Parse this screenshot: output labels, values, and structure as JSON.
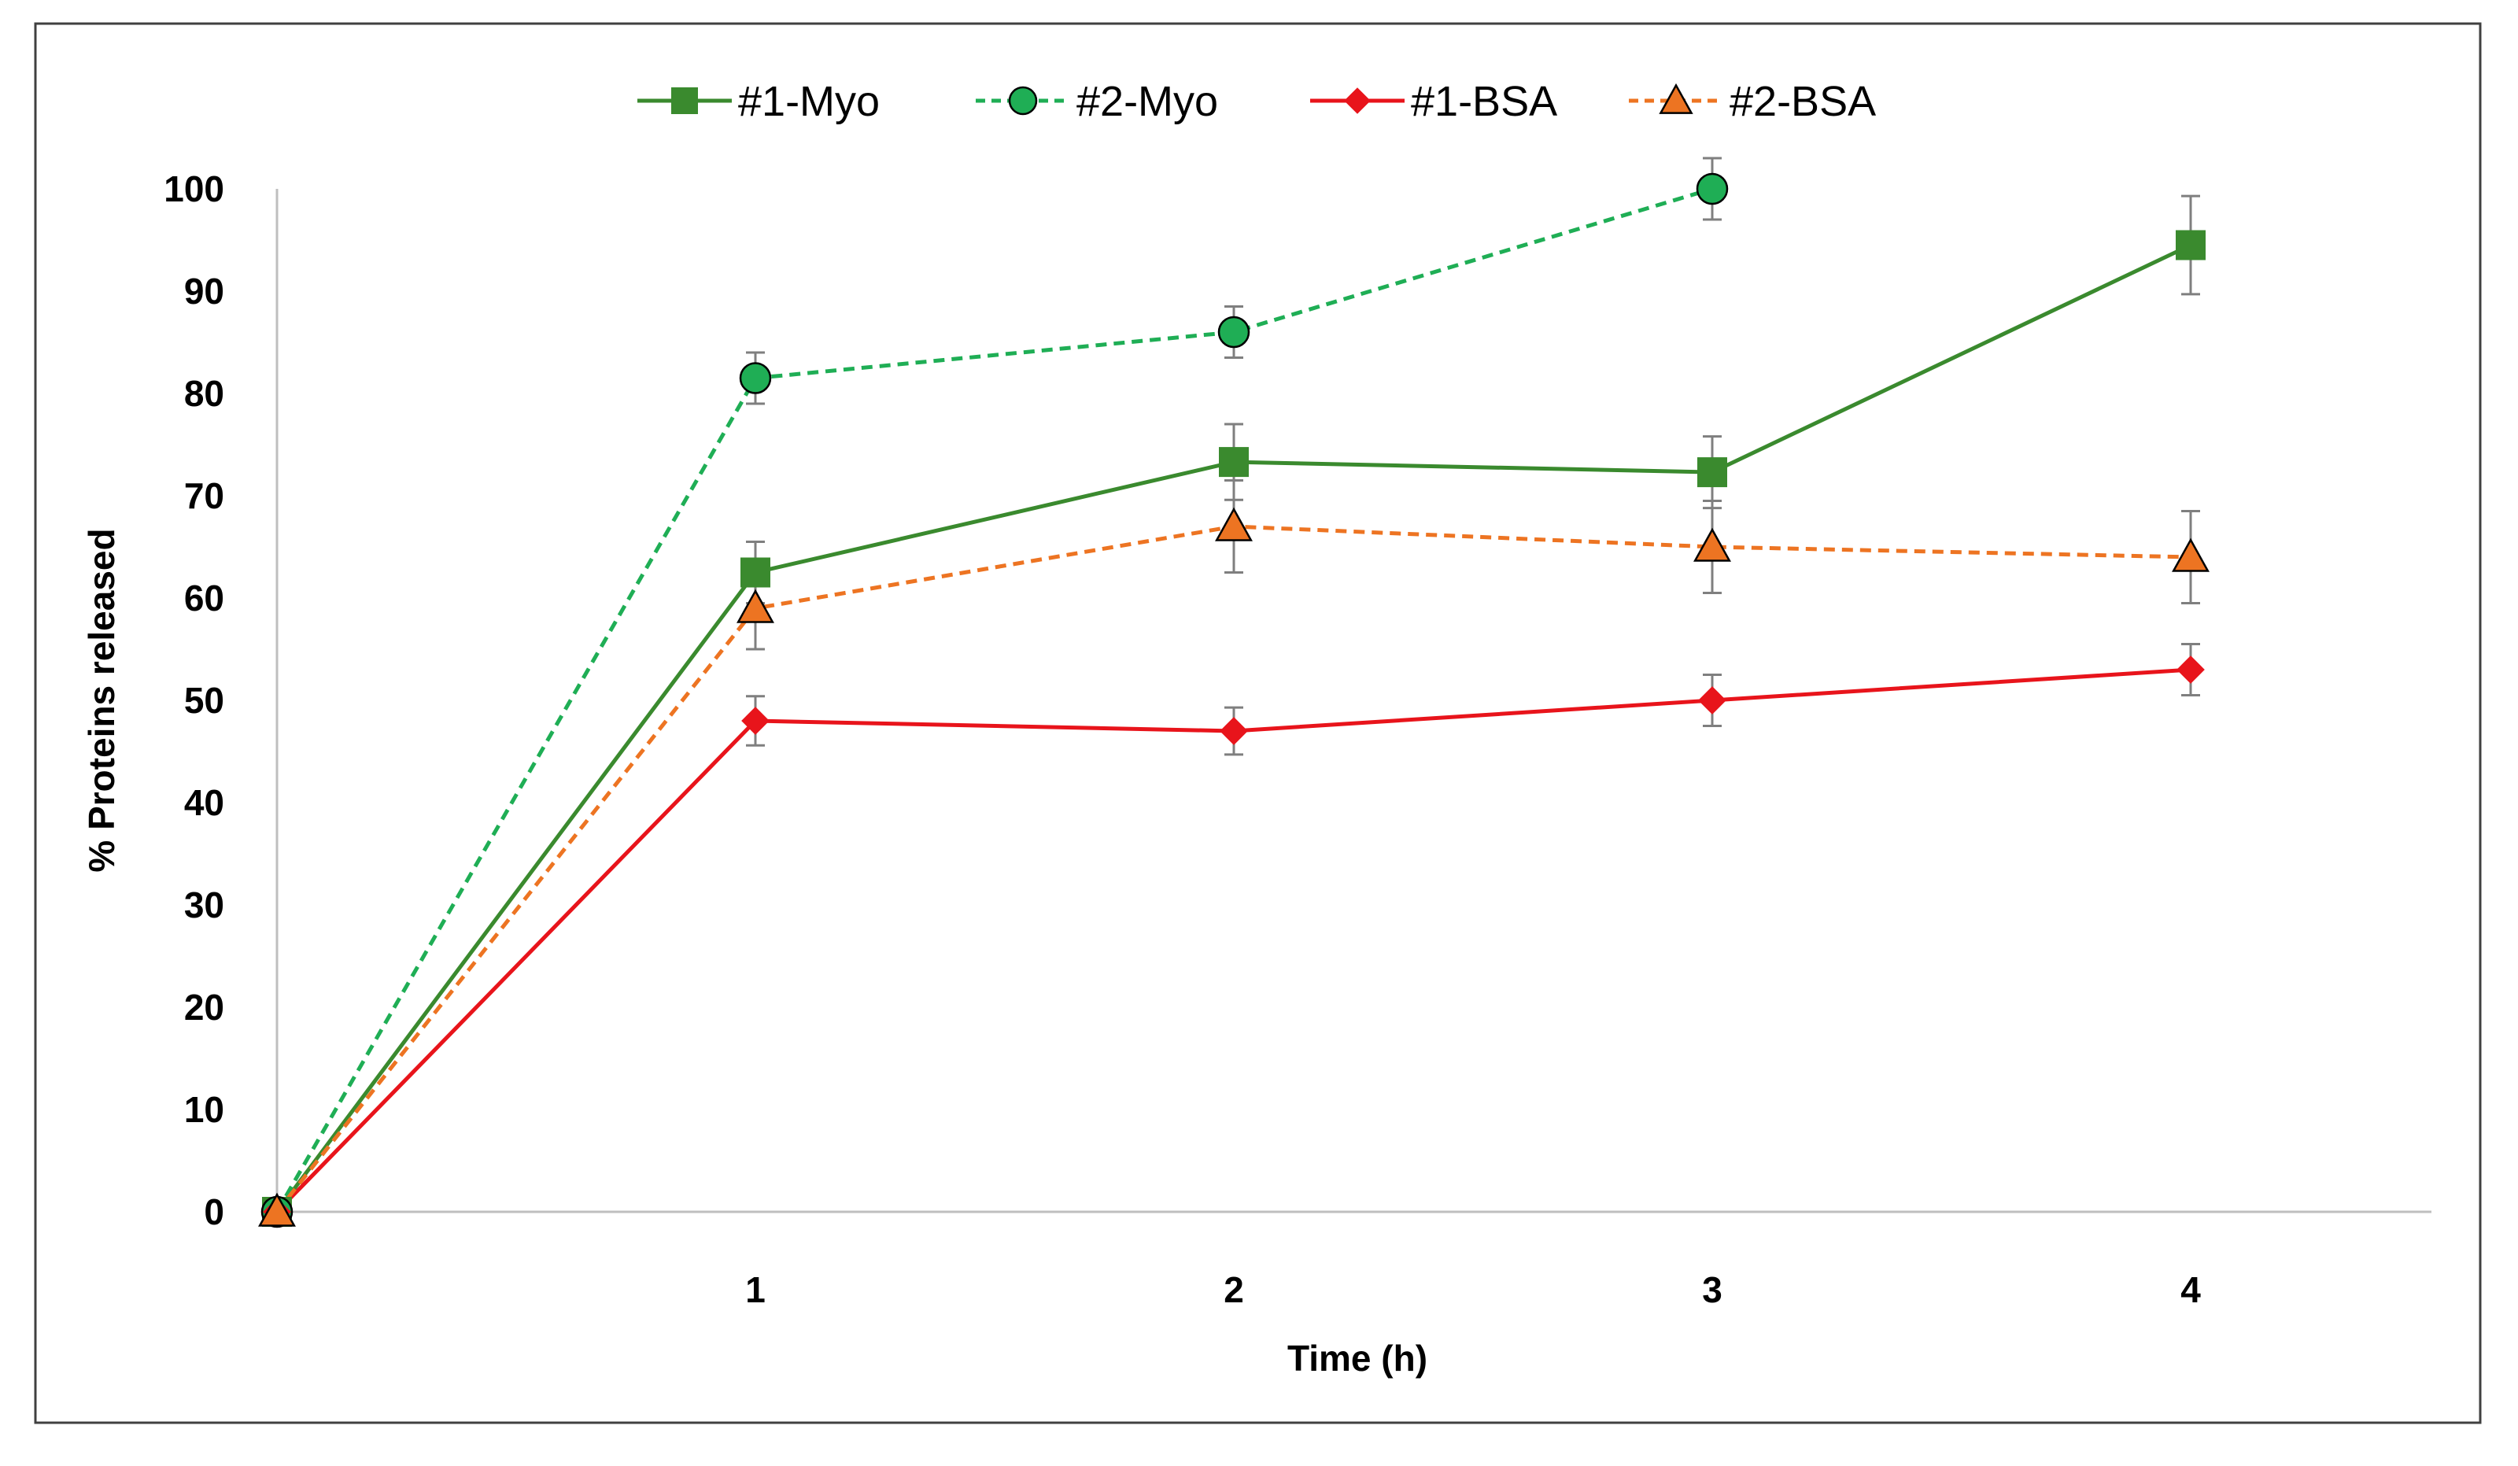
{
  "chart_data": {
    "type": "line",
    "title": "",
    "xlabel": "Time (h)",
    "ylabel": "% Proteins released",
    "x": [
      0,
      1,
      2,
      3,
      4
    ],
    "x_tick_labels": [
      "1",
      "2",
      "3",
      "4"
    ],
    "x_tick_values": [
      1,
      2,
      3,
      4
    ],
    "ylim": [
      0,
      100
    ],
    "y_ticks": [
      0,
      10,
      20,
      30,
      40,
      50,
      60,
      70,
      80,
      90,
      100
    ],
    "y_tick_labels": [
      "0",
      "10",
      "20",
      "30",
      "40",
      "50",
      "60",
      "70",
      "80",
      "90",
      "100"
    ],
    "legend_position": "top",
    "grid": false,
    "series": [
      {
        "name": "#1-Myo",
        "color": "#3a8a2e",
        "dash": "solid",
        "marker": "square",
        "x": [
          0,
          1,
          2,
          3,
          4
        ],
        "values": [
          0,
          62.5,
          73.3,
          72.3,
          94.5
        ],
        "errors": [
          0,
          3,
          3.7,
          3.5,
          4.8
        ]
      },
      {
        "name": "#2-Myo",
        "color": "#1fae55",
        "dash": "dashed",
        "marker": "circle",
        "x": [
          0,
          1,
          2,
          3
        ],
        "values": [
          0,
          81.5,
          86,
          100
        ],
        "errors": [
          0,
          2.5,
          2.5,
          3
        ]
      },
      {
        "name": "#1-BSA",
        "color": "#e8141b",
        "dash": "solid",
        "marker": "diamond",
        "x": [
          0,
          1,
          2,
          3,
          4
        ],
        "values": [
          0,
          48,
          47,
          50,
          53
        ],
        "errors": [
          0,
          2.4,
          2.3,
          2.5,
          2.5
        ]
      },
      {
        "name": "#2-BSA",
        "color": "#ed7422",
        "dash": "dashed",
        "marker": "triangle",
        "x": [
          0,
          1,
          2,
          3,
          4
        ],
        "values": [
          0,
          59,
          67,
          65,
          64
        ],
        "errors": [
          0,
          4,
          4.5,
          4.5,
          4.5
        ]
      }
    ]
  }
}
